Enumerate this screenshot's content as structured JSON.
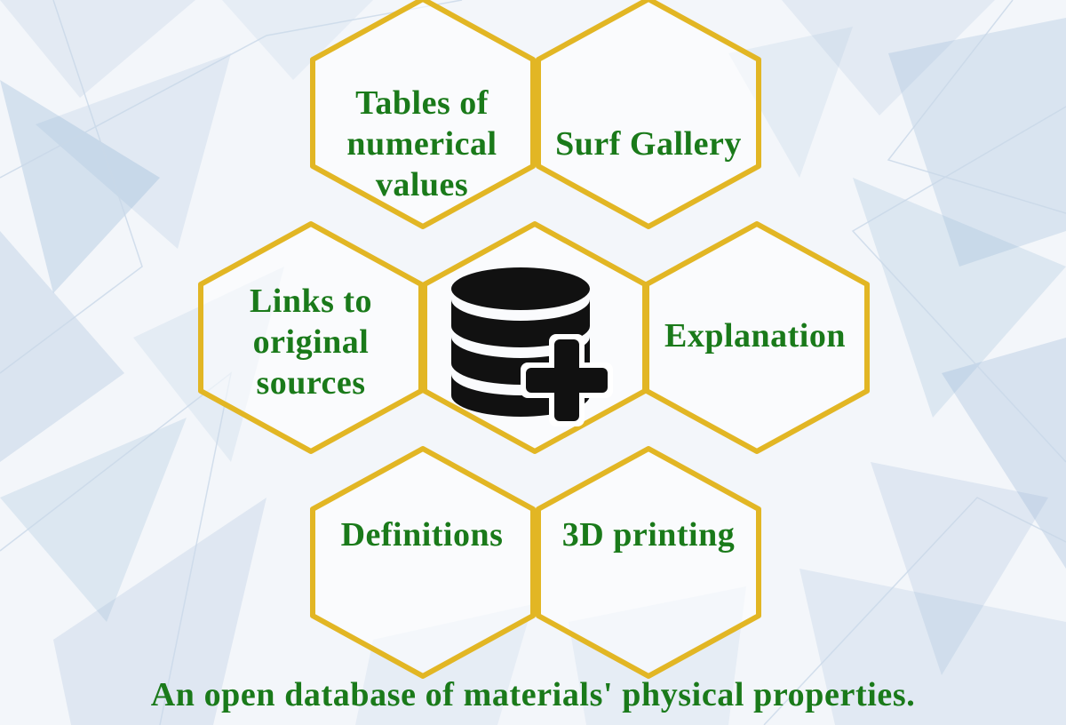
{
  "diagram": {
    "center_icon": "database-plus-icon",
    "cells": [
      {
        "id": "tables",
        "label": "Tables of\nnumerical\nvalues"
      },
      {
        "id": "surf-gallery",
        "label": "Surf Gallery"
      },
      {
        "id": "links",
        "label": "Links to\noriginal\nsources"
      },
      {
        "id": "explanation",
        "label": "Explanation"
      },
      {
        "id": "definitions",
        "label": "Definitions"
      },
      {
        "id": "printing",
        "label": "3D printing"
      }
    ]
  },
  "tagline": "An open database of materials' physical properties.",
  "colors": {
    "hex_stroke": "#e2b624",
    "text": "#1a7a1a",
    "hex_fill": "#ffffff",
    "icon": "#111111",
    "background": "#f3f6fa",
    "shard": "#8fb0d3"
  }
}
